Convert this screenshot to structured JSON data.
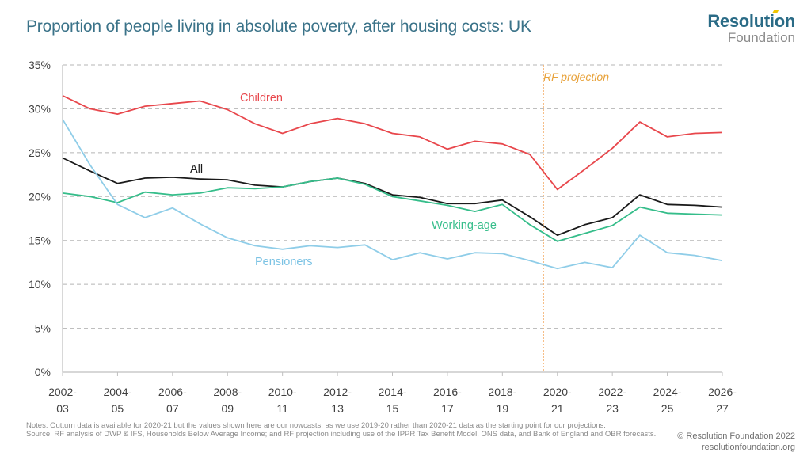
{
  "header": {
    "title": "Proportion of people living in absolute poverty, after housing costs: UK",
    "logo_line1": "Resolution",
    "logo_line2": "Foundation"
  },
  "footer": {
    "notes": "Notes: Outturn data is available for 2020-21 but the values shown here are our nowcasts, as we use 2019-20 rather than 2020-21 data as the starting point for our projections.",
    "source": "Source: RF analysis of DWP & IFS, Households Below Average Income; and RF projection including use of the IPPR Tax Benefit Model, ONS data, and Bank of England and OBR forecasts.",
    "copyright": "© Resolution Foundation 2022",
    "website": "resolutionfoundation.org"
  },
  "chart_data": {
    "type": "line",
    "title": "Proportion of people living in absolute poverty, after housing costs: UK",
    "xlabel": "",
    "ylabel": "",
    "ylim": [
      0,
      35
    ],
    "yticks": [
      0,
      5,
      10,
      15,
      20,
      25,
      30,
      35
    ],
    "ytick_labels": [
      "0%",
      "5%",
      "10%",
      "15%",
      "20%",
      "25%",
      "30%",
      "35%"
    ],
    "grid": true,
    "x": [
      "2002-03",
      "2003-04",
      "2004-05",
      "2005-06",
      "2006-07",
      "2007-08",
      "2008-09",
      "2009-10",
      "2010-11",
      "2011-12",
      "2012-13",
      "2013-14",
      "2014-15",
      "2015-16",
      "2016-17",
      "2017-18",
      "2018-19",
      "2019-20",
      "2020-21",
      "2021-22",
      "2022-23",
      "2023-24",
      "2024-25",
      "2025-26",
      "2026-27"
    ],
    "xtick_labels": [
      [
        "2002-",
        "03"
      ],
      [
        "2004-",
        "05"
      ],
      [
        "2006-",
        "07"
      ],
      [
        "2008-",
        "09"
      ],
      [
        "2010-",
        "11"
      ],
      [
        "2012-",
        "13"
      ],
      [
        "2014-",
        "15"
      ],
      [
        "2016-",
        "17"
      ],
      [
        "2018-",
        "19"
      ],
      [
        "2020-",
        "21"
      ],
      [
        "2022-",
        "23"
      ],
      [
        "2024-",
        "25"
      ],
      [
        "2026-",
        "27"
      ]
    ],
    "series": [
      {
        "name": "Children",
        "color": "#e8474c",
        "label_position": "above-left",
        "values": [
          31.5,
          30.0,
          29.4,
          30.3,
          30.6,
          30.9,
          29.9,
          28.3,
          27.2,
          28.3,
          28.9,
          28.3,
          27.2,
          26.8,
          25.4,
          26.3,
          26.0,
          24.8,
          20.8,
          23.1,
          25.5,
          28.5,
          26.8,
          27.2,
          27.3
        ]
      },
      {
        "name": "All",
        "color": "#1a1a1a",
        "label_position": "above-left",
        "values": [
          24.4,
          22.9,
          21.5,
          22.1,
          22.2,
          22.0,
          21.9,
          21.3,
          21.1,
          21.7,
          22.1,
          21.5,
          20.2,
          19.9,
          19.2,
          19.2,
          19.6,
          17.7,
          15.6,
          16.8,
          17.6,
          20.2,
          19.1,
          19.0,
          18.8
        ]
      },
      {
        "name": "Working-age",
        "color": "#35bd8a",
        "label_position": "below-middle",
        "values": [
          20.4,
          20.0,
          19.3,
          20.5,
          20.2,
          20.4,
          21.0,
          20.9,
          21.1,
          21.7,
          22.1,
          21.4,
          20.0,
          19.5,
          19.0,
          18.3,
          19.1,
          16.8,
          14.9,
          15.8,
          16.7,
          18.8,
          18.1,
          18.0,
          17.9
        ]
      },
      {
        "name": "Pensioners",
        "color": "#8fcde8",
        "label_position": "below-left",
        "values": [
          28.8,
          23.6,
          19.1,
          17.6,
          18.7,
          16.9,
          15.3,
          14.4,
          14.0,
          14.4,
          14.2,
          14.5,
          12.8,
          13.6,
          12.9,
          13.6,
          13.5,
          12.7,
          11.8,
          12.5,
          11.9,
          15.6,
          13.6,
          13.3,
          12.7
        ]
      }
    ],
    "annotations": [
      {
        "text": "RF projection",
        "color": "#e8a23a",
        "x_between": [
          "2019-20",
          "2020-21"
        ],
        "style": "vertical-dotted-line"
      }
    ],
    "label_text": {
      "children": "Children",
      "all": "All",
      "working_age": "Working-age",
      "pensioners": "Pensioners",
      "projection": "RF projection"
    }
  }
}
